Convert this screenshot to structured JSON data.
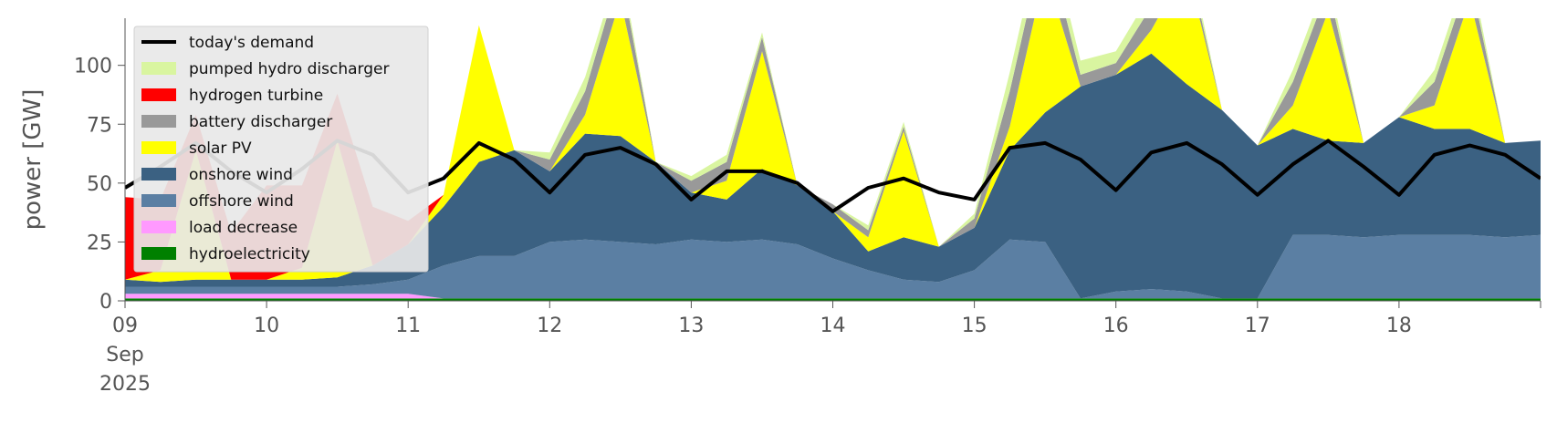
{
  "chart_data": {
    "type": "area",
    "title": "",
    "xlabel": "",
    "ylabel": "power [GW]",
    "ylim": [
      0,
      120
    ],
    "y_ticks": [
      0,
      25,
      50,
      75,
      100
    ],
    "x_range": [
      "2025-09-09",
      "2025-09-19"
    ],
    "x_ticks": [
      {
        "x": "2025-09-09",
        "label": "09",
        "sub1": "Sep",
        "sub2": "2025"
      },
      {
        "x": "2025-09-10",
        "label": "10"
      },
      {
        "x": "2025-09-11",
        "label": "11"
      },
      {
        "x": "2025-09-12",
        "label": "12"
      },
      {
        "x": "2025-09-13",
        "label": "13"
      },
      {
        "x": "2025-09-14",
        "label": "14"
      },
      {
        "x": "2025-09-15",
        "label": "15"
      },
      {
        "x": "2025-09-16",
        "label": "16"
      },
      {
        "x": "2025-09-17",
        "label": "17"
      },
      {
        "x": "2025-09-18",
        "label": "18"
      }
    ],
    "grid": false,
    "legend_position": "top-left",
    "x": [
      "2025-09-09 00:00",
      "2025-09-09 06:00",
      "2025-09-09 12:00",
      "2025-09-09 18:00",
      "2025-09-10 00:00",
      "2025-09-10 06:00",
      "2025-09-10 12:00",
      "2025-09-10 18:00",
      "2025-09-11 00:00",
      "2025-09-11 06:00",
      "2025-09-11 12:00",
      "2025-09-11 18:00",
      "2025-09-12 00:00",
      "2025-09-12 06:00",
      "2025-09-12 12:00",
      "2025-09-12 18:00",
      "2025-09-13 00:00",
      "2025-09-13 06:00",
      "2025-09-13 12:00",
      "2025-09-13 18:00",
      "2025-09-14 00:00",
      "2025-09-14 06:00",
      "2025-09-14 12:00",
      "2025-09-14 18:00",
      "2025-09-15 00:00",
      "2025-09-15 06:00",
      "2025-09-15 12:00",
      "2025-09-15 18:00",
      "2025-09-16 00:00",
      "2025-09-16 06:00",
      "2025-09-16 12:00",
      "2025-09-16 18:00",
      "2025-09-17 00:00",
      "2025-09-17 06:00",
      "2025-09-17 12:00",
      "2025-09-17 18:00",
      "2025-09-18 00:00",
      "2025-09-18 06:00",
      "2025-09-18 12:00",
      "2025-09-18 18:00",
      "2025-09-19 00:00"
    ],
    "series": [
      {
        "name": "hydroelectricity",
        "color": "#008000",
        "values": [
          1,
          1,
          1,
          1,
          1,
          1,
          1,
          1,
          1,
          1,
          1,
          1,
          1,
          1,
          1,
          1,
          1,
          1,
          1,
          1,
          1,
          1,
          1,
          1,
          1,
          1,
          1,
          1,
          1,
          1,
          1,
          1,
          1,
          1,
          1,
          1,
          1,
          1,
          1,
          1,
          1
        ]
      },
      {
        "name": "load decrease",
        "color": "#ff99ff",
        "values": [
          2,
          2,
          2,
          2,
          2,
          2,
          2,
          2,
          2,
          0,
          0,
          0,
          0,
          0,
          0,
          0,
          0,
          0,
          0,
          0,
          0,
          0,
          0,
          0,
          0,
          0,
          0,
          0,
          0,
          0,
          0,
          0,
          0,
          0,
          0,
          0,
          0,
          0,
          0,
          0,
          0
        ]
      },
      {
        "name": "offshore wind",
        "color": "#5b7fa3",
        "values": [
          3,
          3,
          3,
          3,
          3,
          3,
          3,
          4,
          6,
          14,
          18,
          18,
          24,
          25,
          24,
          23,
          25,
          24,
          25,
          23,
          17,
          12,
          8,
          7,
          12,
          25,
          24,
          0,
          3,
          4,
          3,
          0,
          0,
          27,
          27,
          26,
          27,
          27,
          27,
          26,
          27
        ]
      },
      {
        "name": "onshore wind",
        "color": "#3b6182",
        "values": [
          3,
          2,
          3,
          3,
          3,
          3,
          4,
          8,
          15,
          25,
          40,
          45,
          30,
          45,
          45,
          35,
          20,
          18,
          30,
          25,
          20,
          8,
          18,
          15,
          18,
          38,
          55,
          90,
          92,
          100,
          88,
          80,
          65,
          45,
          40,
          40,
          50,
          45,
          45,
          40,
          40
        ]
      },
      {
        "name": "solar PV",
        "color": "#ffff00",
        "values": [
          0,
          5,
          55,
          0,
          0,
          5,
          58,
          0,
          0,
          5,
          58,
          0,
          0,
          8,
          58,
          0,
          0,
          8,
          50,
          0,
          0,
          6,
          45,
          0,
          0,
          10,
          60,
          0,
          0,
          10,
          50,
          0,
          0,
          10,
          55,
          0,
          0,
          10,
          55,
          0,
          0
        ]
      },
      {
        "name": "battery discharger",
        "color": "#999999",
        "values": [
          0,
          0,
          0,
          0,
          0,
          0,
          0,
          0,
          0,
          0,
          0,
          0,
          5,
          10,
          12,
          0,
          5,
          8,
          6,
          0,
          3,
          3,
          2,
          0,
          4,
          15,
          15,
          5,
          5,
          10,
          5,
          0,
          0,
          10,
          10,
          0,
          0,
          10,
          10,
          0,
          0
        ]
      },
      {
        "name": "hydrogen turbine",
        "color": "#ff0000",
        "values": [
          35,
          30,
          15,
          20,
          40,
          35,
          20,
          25,
          10,
          0,
          0,
          0,
          0,
          0,
          0,
          0,
          0,
          0,
          0,
          0,
          0,
          0,
          0,
          0,
          0,
          0,
          0,
          0,
          0,
          0,
          0,
          0,
          0,
          0,
          0,
          0,
          0,
          0,
          0,
          0,
          0
        ]
      },
      {
        "name": "pumped hydro discharger",
        "color": "#d9f5a0",
        "values": [
          0,
          0,
          0,
          0,
          0,
          0,
          0,
          0,
          0,
          0,
          0,
          0,
          3,
          6,
          4,
          0,
          2,
          3,
          2,
          0,
          0,
          2,
          2,
          0,
          2,
          8,
          8,
          6,
          5,
          6,
          5,
          0,
          0,
          5,
          5,
          0,
          0,
          5,
          5,
          0,
          0
        ]
      }
    ],
    "line": {
      "name": "today's demand",
      "color": "#000000",
      "values": [
        48,
        57,
        67,
        55,
        46,
        56,
        68,
        62,
        46,
        52,
        67,
        60,
        46,
        62,
        65,
        58,
        43,
        55,
        55,
        50,
        38,
        48,
        52,
        46,
        43,
        65,
        67,
        60,
        47,
        63,
        67,
        58,
        45,
        58,
        68,
        57,
        45,
        62,
        66,
        62,
        52
      ]
    }
  }
}
